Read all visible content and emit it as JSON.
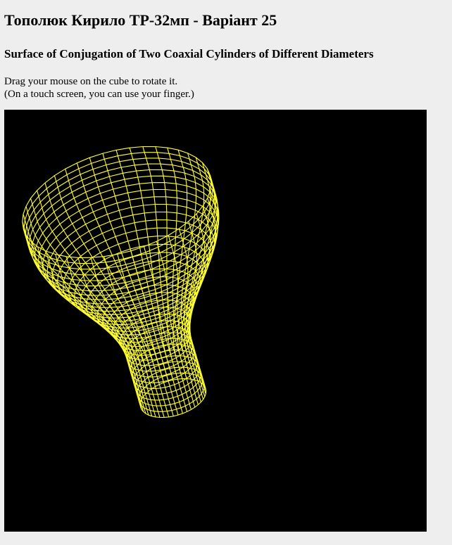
{
  "page": {
    "title": "Тополюк Кирило ТР-32мп - Варіант 25",
    "subtitle": "Surface of Conjugation of Two Coaxial Cylinders of Different Diameters",
    "instructions": {
      "line1": "Drag your mouse on the cube to rotate it.",
      "line2": "(On a touch screen, you can use your finger.)"
    }
  },
  "canvas": {
    "background": "#000000",
    "wire_color": "#ffff33"
  }
}
